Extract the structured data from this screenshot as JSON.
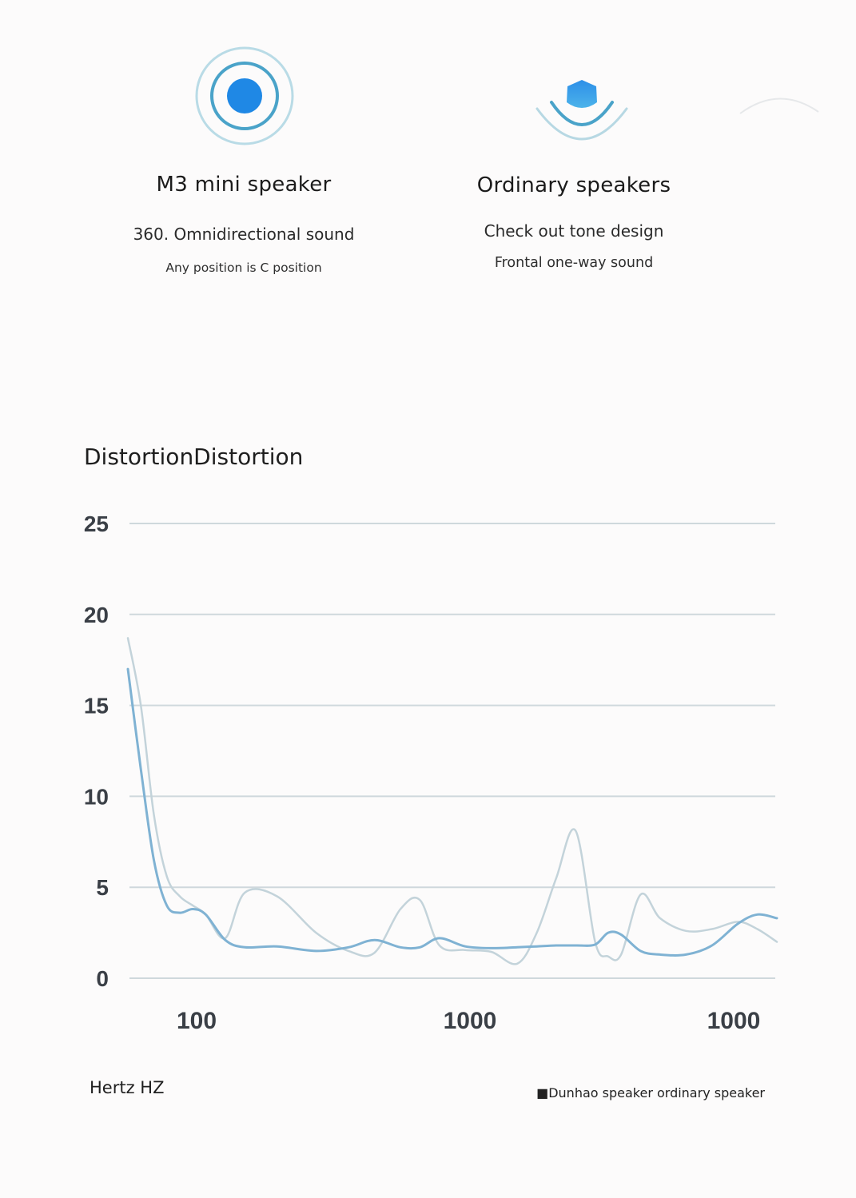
{
  "left_card": {
    "title": "M3 mini speaker",
    "line1": "360. Omnidirectional sound",
    "line2": "Any position is C position",
    "icon": "omnidirectional-sound-icon"
  },
  "right_card": {
    "title": "Ordinary speakers",
    "line1": "Check out tone design",
    "line2": "Frontal one-way sound",
    "icon": "directional-sound-icon"
  },
  "colors": {
    "accent_blue": "#1f88e5",
    "ring_blue": "#6cb7d6",
    "series_dunhao": "#7fb2d3",
    "series_ordinary": "#c3d3da",
    "grid": "#cfd8dc"
  },
  "chart_data": {
    "type": "line",
    "title": "DistortionDistortion",
    "xlabel": "Hertz HZ",
    "ylabel": "",
    "ylim": [
      0,
      25
    ],
    "yticks": [
      "0",
      "5",
      "10",
      "15",
      "20",
      "25"
    ],
    "xticks": [
      "100",
      "1000",
      "1000"
    ],
    "grid": true,
    "legend": "bottom-right",
    "legend_text": "■Dunhao speaker ordinary speaker",
    "x": [
      0,
      0.02,
      0.04,
      0.06,
      0.08,
      0.1,
      0.12,
      0.15,
      0.18,
      0.23,
      0.29,
      0.34,
      0.38,
      0.42,
      0.45,
      0.48,
      0.52,
      0.56,
      0.6,
      0.63,
      0.66,
      0.69,
      0.72,
      0.74,
      0.76,
      0.79,
      0.82,
      0.86,
      0.9,
      0.94,
      0.97,
      1.0
    ],
    "series": [
      {
        "values": [
          17,
          11.5,
          6.5,
          4.0,
          3.6,
          3.8,
          3.5,
          2.1,
          1.7,
          1.75,
          1.5,
          1.7,
          2.1,
          1.7,
          1.7,
          2.2,
          1.75,
          1.65,
          1.7,
          1.75,
          1.8,
          1.8,
          1.85,
          2.5,
          2.4,
          1.5,
          1.3,
          1.3,
          1.8,
          3.0,
          3.5,
          3.3
        ]
      },
      {
        "values": [
          18.7,
          15.0,
          9.0,
          5.6,
          4.5,
          4.0,
          3.5,
          2.2,
          4.7,
          4.5,
          2.5,
          1.5,
          1.4,
          3.8,
          4.3,
          1.8,
          1.55,
          1.45,
          0.8,
          2.5,
          5.5,
          8.1,
          2.0,
          1.2,
          1.3,
          4.6,
          3.3,
          2.6,
          2.7,
          3.1,
          2.7,
          2.0
        ]
      }
    ]
  }
}
